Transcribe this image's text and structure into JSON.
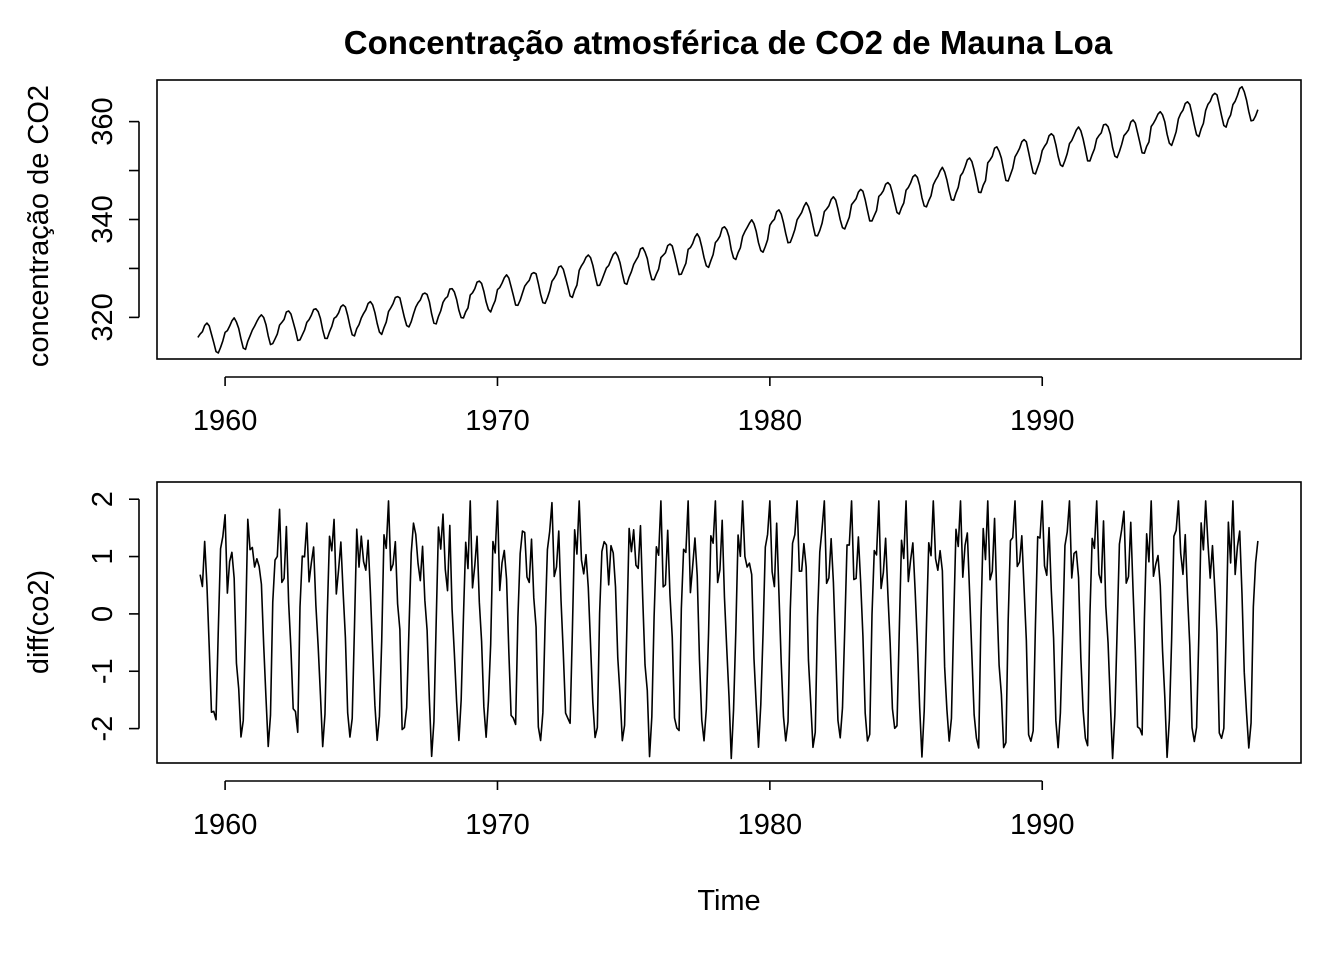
{
  "chart_data": [
    {
      "type": "line",
      "title": "Concentração atmosférica de CO2 de Mauna Loa",
      "xlabel": "",
      "ylabel": "concentração de CO2",
      "xlim": [
        1957.5,
        1999.5
      ],
      "ylim": [
        311.5,
        368.5
      ],
      "x_ticks": [
        1960,
        1970,
        1980,
        1990
      ],
      "x_tick_labels": [
        "1960",
        "1970",
        "1980",
        "1990"
      ],
      "y_ticks": [
        320,
        330,
        340,
        350,
        360
      ],
      "y_tick_labels": [
        "320",
        "",
        "340",
        "",
        "360"
      ],
      "grid": false,
      "series": [
        {
          "start": 1959.0,
          "frequency": 12,
          "annual_means": [
            315.97,
            316.91,
            317.64,
            318.45,
            318.99,
            319.62,
            320.04,
            321.38,
            322.16,
            323.04,
            324.62,
            325.68,
            326.32,
            327.45,
            329.68,
            330.18,
            331.08,
            332.05,
            333.78,
            335.41,
            336.78,
            338.68,
            340.1,
            341.44,
            343.03,
            344.58,
            346.04,
            347.39,
            349.16,
            351.56,
            353.07,
            354.35,
            355.57,
            356.38,
            357.07,
            358.82,
            360.8,
            362.59,
            363.71
          ],
          "seasonal_profile": [
            -0.05,
            0.6,
            1.3,
            2.5,
            2.9,
            2.3,
            0.8,
            -1.3,
            -3.0,
            -3.2,
            -2.0,
            -0.9
          ]
        }
      ]
    },
    {
      "type": "line",
      "title": "",
      "xlabel": "Time",
      "ylabel": "diff(co2)",
      "xlim": [
        1957.5,
        1999.5
      ],
      "ylim": [
        -2.6,
        2.3
      ],
      "x_ticks": [
        1960,
        1970,
        1980,
        1990
      ],
      "x_tick_labels": [
        "1960",
        "1970",
        "1980",
        "1990"
      ],
      "y_ticks": [
        -2,
        -1,
        0,
        1,
        2
      ],
      "y_tick_labels": [
        "-2",
        "-1",
        "0",
        "1",
        "2"
      ],
      "grid": false,
      "derived_from": "first difference of panel 1 series",
      "observed_extremes": {
        "max": 1.97,
        "min": -2.52
      }
    }
  ]
}
